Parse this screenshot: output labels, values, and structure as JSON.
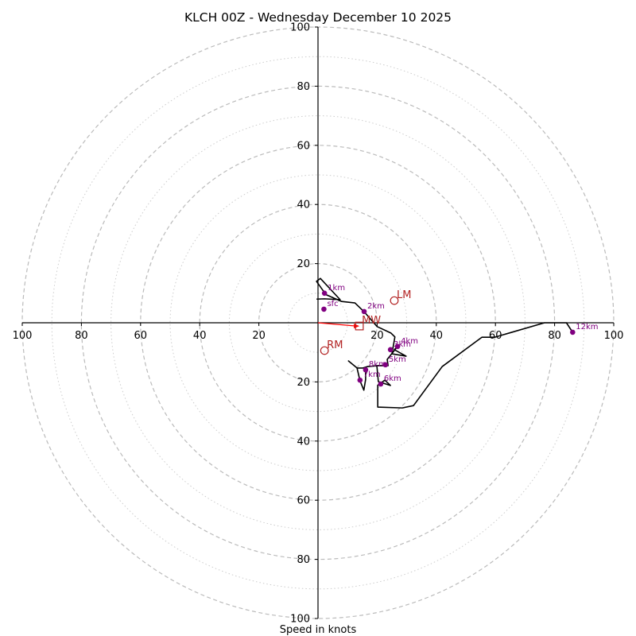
{
  "chart_data": {
    "type": "line",
    "subtype": "hodograph",
    "title": "KLCH 00Z - Wednesday December 10 2025",
    "xlabel": "Speed in knots",
    "ylabel": "",
    "rings": {
      "major": [
        20,
        40,
        60,
        80,
        100
      ],
      "minor": [
        10,
        30,
        50,
        70,
        90
      ],
      "major_style": "dashed",
      "minor_style": "dotted"
    },
    "axis_range": [
      -100,
      100
    ],
    "tick_labels": {
      "x": [
        "100",
        "80",
        "60",
        "40",
        "20",
        "20",
        "40",
        "60",
        "80",
        "100"
      ],
      "y": [
        "100",
        "80",
        "60",
        "40",
        "20",
        "20",
        "40",
        "60",
        "80",
        "100"
      ]
    },
    "hodograph": {
      "unit": "knots",
      "u": [
        -0.5,
        2.2,
        7.5,
        0.8,
        -0.5,
        2.7,
        8,
        12.5,
        15.8,
        20,
        24.7,
        26,
        25,
        29.8,
        25.8,
        26.9,
        23.4,
        23.7,
        22.3,
        19.9,
        20.4,
        24.5,
        22.6,
        20.2,
        20.2,
        28.5,
        32.3,
        42,
        55.4,
        59.7,
        76.6,
        84,
        86.1
      ],
      "v": [
        8,
        8.1,
        7.8,
        15,
        14,
        9.5,
        7.2,
        6.7,
        3.5,
        -1.3,
        -3.5,
        -4.8,
        -10.5,
        -11.3,
        -9.1,
        -8,
        -12.4,
        -14.5,
        -14.5,
        -14.5,
        -19.9,
        -21.2,
        -19.4,
        -21.1,
        -28.5,
        -28.8,
        -28,
        -14.8,
        -4.9,
        -4.9,
        0,
        0,
        -3.2
      ],
      "color": "#000000"
    },
    "lower_loop": {
      "u": [
        20.4,
        16.8,
        15.2,
        13.2,
        10.3,
        13.2,
        14.2,
        15.5,
        16.1,
        16.1
      ],
      "v": [
        -14.5,
        -14.8,
        -15.3,
        -15.3,
        -12.9,
        -15.3,
        -19.6,
        -22.8,
        -19.2,
        -15.8
      ],
      "color": "#000000"
    },
    "height_markers": [
      {
        "label": "sfc",
        "u": 2.0,
        "v": 4.6
      },
      {
        "label": "1km",
        "u": 2.2,
        "v": 10.0
      },
      {
        "label": "2km",
        "u": 15.6,
        "v": 3.8
      },
      {
        "label": "3km",
        "u": 24.5,
        "v": -9.1
      },
      {
        "label": "4km",
        "u": 26.9,
        "v": -8.0
      },
      {
        "label": "5km",
        "u": 22.8,
        "v": -14.2
      },
      {
        "label": "6km",
        "u": 21.2,
        "v": -20.7
      },
      {
        "label": "7km",
        "u": 14.2,
        "v": -19.4
      },
      {
        "label": "8km",
        "u": 16.1,
        "v": -15.9
      },
      {
        "label": "12km",
        "u": 86.1,
        "v": -3.2
      }
    ],
    "storm_motion": [
      {
        "label": "LM",
        "u": 25.8,
        "v": 7.5,
        "marker": "circle"
      },
      {
        "label": "RM",
        "u": 2.2,
        "v": -9.4,
        "marker": "circle"
      },
      {
        "label": "MW",
        "u": 14.0,
        "v": -1.1,
        "marker": "square"
      }
    ],
    "mean_wind_vector": {
      "u": 14.0,
      "v": -1.1,
      "color": "#ff0000"
    },
    "marker_color": "#800080",
    "storm_marker_color": "#b22222",
    "grid": true,
    "legend": "none"
  }
}
